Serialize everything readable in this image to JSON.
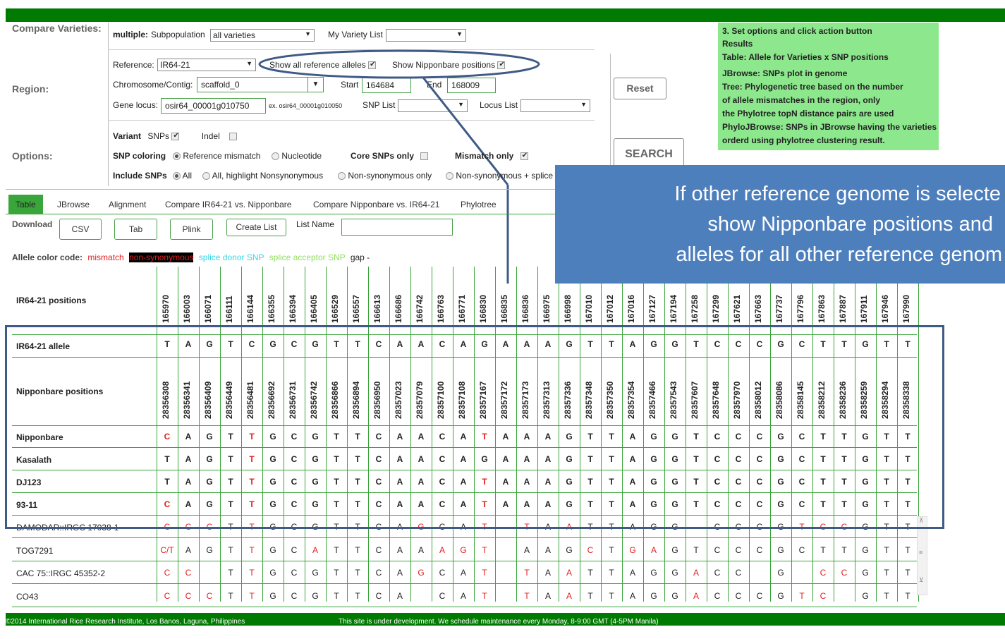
{
  "footer": {
    "copyright": "©2014 International Rice Research Institute, Los Banos, Laguna, Philippines",
    "notice": "This site is under development. We schedule maintenance every Monday, 8-9:00 GMT (4-5PM Manila)"
  },
  "compare": {
    "label": "Compare Varieties:",
    "multiple_label": "multiple:",
    "subpop_label": "Subpopulation",
    "subpop_value": "all varieties",
    "myvariety_label": "My Variety List",
    "myvariety_value": ""
  },
  "region": {
    "label": "Region:",
    "reference_label": "Reference:",
    "reference_value": "IR64-21",
    "show_all_ref_label": "Show all reference alleles",
    "show_nipponbare_label": "Show Nipponbare positions",
    "chrom_label": "Chromosome/Contig:",
    "chrom_value": "scaffold_0",
    "start_label": "Start",
    "start_value": "164684",
    "end_label": "End",
    "end_value": "168009",
    "gene_label": "Gene locus:",
    "gene_value": "osir64_00001g010750",
    "gene_example": "ex. osir64_00001g010050",
    "snplist_label": "SNP List",
    "locuslist_label": "Locus List"
  },
  "options": {
    "label": "Options:",
    "variant_label": "Variant",
    "snps_label": "SNPs",
    "indel_label": "Indel",
    "snp_coloring_label": "SNP coloring",
    "ref_mismatch_label": "Reference mismatch",
    "nucleotide_label": "Nucleotide",
    "core_snps_label": "Core SNPs only",
    "mismatch_only_label": "Mismatch only",
    "include_snps_label": "Include SNPs",
    "all_label": "All",
    "all_highlight_label": "All, highlight Nonsynonymous",
    "nonsyn_only_label": "Non-synonymous only",
    "nonsyn_splice_label": "Non-synonymous + splice"
  },
  "buttons": {
    "reset": "Reset",
    "search": "SEARCH"
  },
  "help": [
    "3. Set options and click action button",
    "Results",
    "Table: Allele for Varieties x SNP positions",
    "JBrowse: SNPs plot in genome",
    "Tree: Phylogenetic tree based on the number",
    " of allele mismatches in the region, only",
    " the Phylotree topN distance pairs are used",
    "PhyloJBrowse: SNPs in JBrowse having the varieties",
    " orderd using phylotree clustering result."
  ],
  "tabs": [
    "Table",
    "JBrowse",
    "Alignment",
    "Compare IR64-21 vs. Nipponbare",
    "Compare Nipponbare vs. IR64-21",
    "Phylotree"
  ],
  "download": {
    "label": "Download",
    "csv": "CSV",
    "tab": "Tab",
    "plink": "Plink",
    "create_list": "Create List",
    "list_name_label": "List Name",
    "list_name_value": ""
  },
  "legend": {
    "label": "Allele color code:",
    "mismatch": "mismatch",
    "nonsyn": "non-synonymous",
    "donor": "splice donor SNP",
    "acceptor": "splice acceptor SNP",
    "gap": "gap -"
  },
  "callout": [
    "If other reference genome is selecte",
    "show Nipponbare positions and",
    "alleles for all other reference genom"
  ],
  "colors": {
    "green_bar": "#007a00",
    "help_box": "#8de88d",
    "callout": "#4e7fbd",
    "mismatch": "#e32020",
    "highlight_frame": "#3e5a85"
  },
  "table": {
    "ir64_positions_label": "IR64-21 positions",
    "ir64_allele_label": "IR64-21 allele",
    "nip_positions_label": "Nipponbare positions",
    "ir64_positions": [
      "165970",
      "166003",
      "166071",
      "166111",
      "166144",
      "166355",
      "166394",
      "166405",
      "166529",
      "166557",
      "166613",
      "166686",
      "166742",
      "166763",
      "166771",
      "166830",
      "166835",
      "166836",
      "166975",
      "166998",
      "167010",
      "167012",
      "167016",
      "167127",
      "167194",
      "167258",
      "167299",
      "167621",
      "167663",
      "167737",
      "167796",
      "167863",
      "167887",
      "167911",
      "167946",
      "167990"
    ],
    "ir64_allele": [
      "T",
      "A",
      "G",
      "T",
      "C",
      "G",
      "C",
      "G",
      "T",
      "T",
      "C",
      "A",
      "A",
      "C",
      "A",
      "G",
      "A",
      "A",
      "A",
      "G",
      "T",
      "T",
      "A",
      "G",
      "G",
      "T",
      "C",
      "C",
      "C",
      "G",
      "C",
      "T",
      "T",
      "G",
      "T",
      "T"
    ],
    "nip_positions": [
      "28356308",
      "28356341",
      "28356409",
      "28356449",
      "28356481",
      "28356692",
      "28356731",
      "28356742",
      "28356866",
      "28356894",
      "28356950",
      "28357023",
      "28357079",
      "28357100",
      "28357108",
      "28357167",
      "28357172",
      "28357173",
      "28357313",
      "28357336",
      "28357348",
      "28357350",
      "28357354",
      "28357466",
      "28357543",
      "28357607",
      "28357648",
      "28357970",
      "28358012",
      "28358086",
      "28358145",
      "28358212",
      "28358236",
      "28358259",
      "28358294",
      "28358338"
    ],
    "rows": [
      {
        "name": "Nipponbare",
        "bold": true,
        "alleles": [
          "C",
          "A",
          "G",
          "T",
          "T",
          "G",
          "C",
          "G",
          "T",
          "T",
          "C",
          "A",
          "A",
          "C",
          "A",
          "T",
          "A",
          "A",
          "A",
          "G",
          "T",
          "T",
          "A",
          "G",
          "G",
          "T",
          "C",
          "C",
          "C",
          "G",
          "C",
          "T",
          "T",
          "G",
          "T",
          "T"
        ],
        "red": [
          0,
          4,
          15
        ]
      },
      {
        "name": "Kasalath",
        "bold": true,
        "alleles": [
          "T",
          "A",
          "G",
          "T",
          "T",
          "G",
          "C",
          "G",
          "T",
          "T",
          "C",
          "A",
          "A",
          "C",
          "A",
          "G",
          "A",
          "A",
          "A",
          "G",
          "T",
          "T",
          "A",
          "G",
          "G",
          "T",
          "C",
          "C",
          "C",
          "G",
          "C",
          "T",
          "T",
          "G",
          "T",
          "T"
        ],
        "red": [
          4
        ]
      },
      {
        "name": "DJ123",
        "bold": true,
        "alleles": [
          "T",
          "A",
          "G",
          "T",
          "T",
          "G",
          "C",
          "G",
          "T",
          "T",
          "C",
          "A",
          "A",
          "C",
          "A",
          "T",
          "A",
          "A",
          "A",
          "G",
          "T",
          "T",
          "A",
          "G",
          "G",
          "T",
          "C",
          "C",
          "C",
          "G",
          "C",
          "T",
          "T",
          "G",
          "T",
          "T"
        ],
        "red": [
          4,
          15
        ]
      },
      {
        "name": "93-11",
        "bold": true,
        "alleles": [
          "C",
          "A",
          "G",
          "T",
          "T",
          "G",
          "C",
          "G",
          "T",
          "T",
          "C",
          "A",
          "A",
          "C",
          "A",
          "T",
          "A",
          "A",
          "A",
          "G",
          "T",
          "T",
          "A",
          "G",
          "G",
          "T",
          "C",
          "C",
          "C",
          "G",
          "C",
          "T",
          "T",
          "G",
          "T",
          "T"
        ],
        "red": [
          0,
          4,
          15
        ]
      },
      {
        "name": "DAMODAR::IRGC 17038-1",
        "bold": false,
        "alleles": [
          "C",
          "C",
          "C",
          "T",
          "T",
          "G",
          "C",
          "G",
          "T",
          "T",
          "C",
          "A",
          "G",
          "C",
          "A",
          "T",
          "",
          "T",
          "A",
          "A",
          "T",
          "T",
          "A",
          "G",
          "G",
          "",
          "C",
          "C",
          "C",
          "G",
          "T",
          "C",
          "C",
          "G",
          "T",
          "T"
        ],
        "red": [
          0,
          1,
          2,
          4,
          12,
          15,
          17,
          19,
          30,
          31,
          32
        ]
      },
      {
        "name": "TOG7291",
        "bold": false,
        "alleles": [
          "C/T",
          "A",
          "G",
          "T",
          "T",
          "G",
          "C",
          "A",
          "T",
          "T",
          "C",
          "A",
          "A",
          "A",
          "G",
          "T",
          "",
          "A",
          "A",
          "G",
          "C",
          "T",
          "G",
          "A",
          "G",
          "T",
          "C",
          "C",
          "C",
          "G",
          "C",
          "T",
          "T",
          "G",
          "T",
          "T"
        ],
        "red": [
          0,
          4,
          7,
          13,
          14,
          15,
          20,
          22,
          23
        ]
      },
      {
        "name": "CAC 75::IRGC 45352-2",
        "bold": false,
        "alleles": [
          "C",
          "C",
          "",
          "T",
          "T",
          "G",
          "C",
          "G",
          "T",
          "T",
          "C",
          "A",
          "G",
          "C",
          "A",
          "T",
          "",
          "T",
          "A",
          "A",
          "T",
          "T",
          "A",
          "G",
          "G",
          "A",
          "C",
          "C",
          "",
          "G",
          "",
          "C",
          "C",
          "G",
          "T",
          "T"
        ],
        "red": [
          0,
          1,
          4,
          12,
          15,
          17,
          19,
          25,
          31,
          32
        ]
      },
      {
        "name": "CO43",
        "bold": false,
        "alleles": [
          "C",
          "C",
          "C",
          "T",
          "T",
          "G",
          "C",
          "G",
          "T",
          "T",
          "C",
          "A",
          "",
          "C",
          "A",
          "T",
          "",
          "T",
          "A",
          "A",
          "T",
          "T",
          "A",
          "G",
          "G",
          "A",
          "C",
          "C",
          "C",
          "G",
          "T",
          "C",
          "",
          "G",
          "T",
          "T"
        ],
        "red": [
          0,
          1,
          2,
          4,
          15,
          17,
          19,
          25,
          30,
          31
        ]
      }
    ]
  }
}
